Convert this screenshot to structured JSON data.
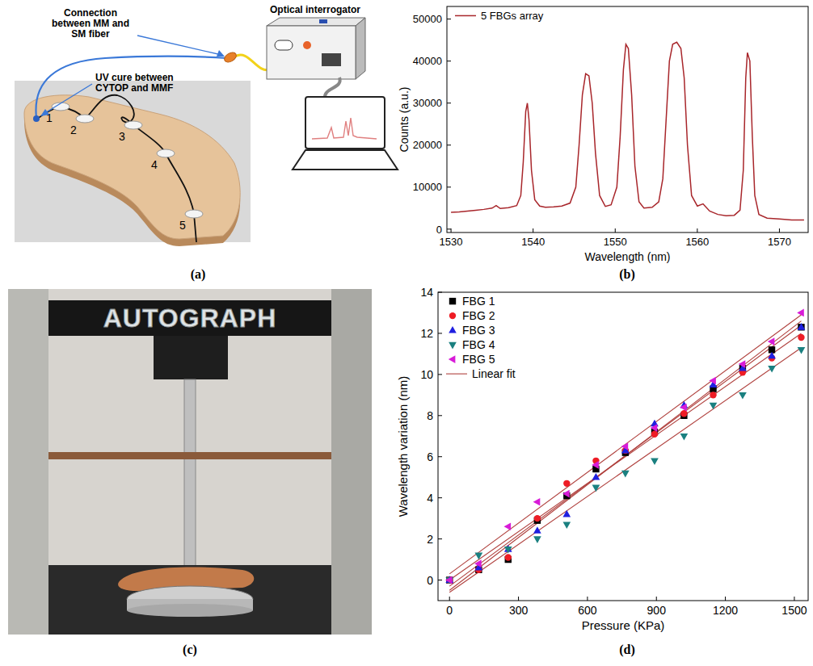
{
  "panel_labels": [
    "(a)",
    "(b)",
    "(c)",
    "(d)"
  ],
  "diagram": {
    "interrogator": "Optical interrogator",
    "connection": "Connection between MM and SM fiber",
    "uv_cure": "UV cure between CYTOP and MMF",
    "sensors": [
      "1",
      "2",
      "3",
      "4",
      "5"
    ]
  },
  "photo": {
    "machine_label": "AUTOGRAPH"
  },
  "chart_data": [
    {
      "type": "line",
      "x_label": "Wavelength (nm)",
      "y_label": "Counts (a.u.)",
      "x": [
        1530,
        1531,
        1532,
        1533,
        1534,
        1535,
        1535.5,
        1536,
        1537,
        1538,
        1538.5,
        1538.8,
        1539.1,
        1539.3,
        1539.5,
        1539.8,
        1540.2,
        1540.8,
        1541.5,
        1542.5,
        1543.5,
        1544.5,
        1545.2,
        1545.6,
        1546.0,
        1546.4,
        1546.8,
        1547.2,
        1547.6,
        1548.1,
        1548.8,
        1549.5,
        1550.2,
        1550.6,
        1551.0,
        1551.3,
        1551.6,
        1552.0,
        1552.4,
        1552.9,
        1553.5,
        1554.5,
        1555.3,
        1555.8,
        1556.2,
        1556.6,
        1557.0,
        1557.5,
        1558.0,
        1558.4,
        1558.8,
        1559.3,
        1560,
        1560.7,
        1561.5,
        1562.5,
        1563.5,
        1564.5,
        1565.2,
        1565.6,
        1565.9,
        1566.1,
        1566.4,
        1566.7,
        1567.0,
        1567.5,
        1568.5,
        1570,
        1571.5,
        1573
      ],
      "series": [
        {
          "name": "5 FBGs array",
          "color": "#a8262b",
          "line_style": "solid",
          "values": [
            4000,
            4100,
            4300,
            4500,
            4700,
            5000,
            5600,
            4900,
            5100,
            5600,
            8000,
            16000,
            28000,
            30000,
            26000,
            14000,
            7000,
            5500,
            5200,
            5300,
            5500,
            6200,
            10000,
            20000,
            32000,
            37000,
            36500,
            30000,
            18000,
            8000,
            5400,
            5800,
            10000,
            22000,
            38000,
            44000,
            43000,
            32000,
            15000,
            6500,
            5000,
            5200,
            6500,
            12000,
            26000,
            40000,
            44000,
            44500,
            43000,
            36000,
            20000,
            8000,
            5500,
            6000,
            4300,
            3500,
            3200,
            3300,
            4500,
            14000,
            36000,
            42000,
            40000,
            22000,
            8000,
            3500,
            2600,
            2400,
            2200,
            2200
          ]
        }
      ],
      "xlim": [
        1529.5,
        1573.5
      ],
      "xticks": [
        1530,
        1540,
        1550,
        1560,
        1570
      ],
      "ylim": [
        -800,
        53000
      ],
      "yticks": [
        0,
        10000,
        20000,
        30000,
        40000,
        50000
      ],
      "grid": false,
      "legend": "upper left"
    },
    {
      "type": "scatter",
      "x_label": "Pressure (KPa)",
      "y_label": "Wavelength variation (nm)",
      "x": [
        0,
        127,
        255,
        382,
        510,
        637,
        765,
        892,
        1020,
        1147,
        1275,
        1402,
        1530
      ],
      "series": [
        {
          "name": "FBG 1",
          "color": "#000000",
          "marker": "square",
          "values": [
            0,
            0.5,
            1.0,
            2.9,
            4.1,
            5.4,
            6.2,
            7.2,
            8.0,
            9.3,
            10.3,
            11.2,
            12.3
          ],
          "fit_values": [
            -0.3,
            12.4
          ]
        },
        {
          "name": "FBG 2",
          "color": "#ee1c25",
          "marker": "circle",
          "values": [
            0,
            0.5,
            1.1,
            3.0,
            4.7,
            5.8,
            6.3,
            7.1,
            8.1,
            9.0,
            10.1,
            10.8,
            11.8
          ],
          "fit_values": [
            0.0,
            12.0
          ]
        },
        {
          "name": "FBG 3",
          "color": "#1f1fe0",
          "marker": "triangle-up",
          "values": [
            0,
            0.6,
            1.5,
            2.4,
            3.2,
            5.0,
            6.3,
            7.6,
            8.5,
            9.5,
            10.3,
            10.9,
            12.3
          ],
          "fit_values": [
            -0.5,
            12.6
          ]
        },
        {
          "name": "FBG 4",
          "color": "#1a8080",
          "marker": "triangle-down",
          "values": [
            0,
            1.2,
            1.5,
            2.0,
            2.7,
            4.5,
            5.2,
            5.8,
            7.0,
            8.5,
            9.0,
            10.3,
            11.2
          ],
          "fit_values": [
            -0.6,
            11.3
          ]
        },
        {
          "name": "FBG 5",
          "color": "#d81bd8",
          "marker": "triangle-left",
          "values": [
            0,
            0.8,
            2.6,
            3.8,
            4.2,
            5.6,
            6.5,
            7.4,
            8.4,
            9.7,
            10.5,
            11.6,
            13.0
          ],
          "fit_values": [
            0.3,
            12.9
          ]
        }
      ],
      "fit": {
        "name": "Linear fit",
        "color": "#b0413e",
        "x": [
          0,
          1530
        ]
      },
      "xlim": [
        -50,
        1560
      ],
      "xticks": [
        0,
        300,
        600,
        900,
        1200,
        1500
      ],
      "ylim": [
        -1,
        14
      ],
      "yticks": [
        0,
        2,
        4,
        6,
        8,
        10,
        12,
        14
      ],
      "grid": false,
      "legend": "upper left"
    }
  ]
}
